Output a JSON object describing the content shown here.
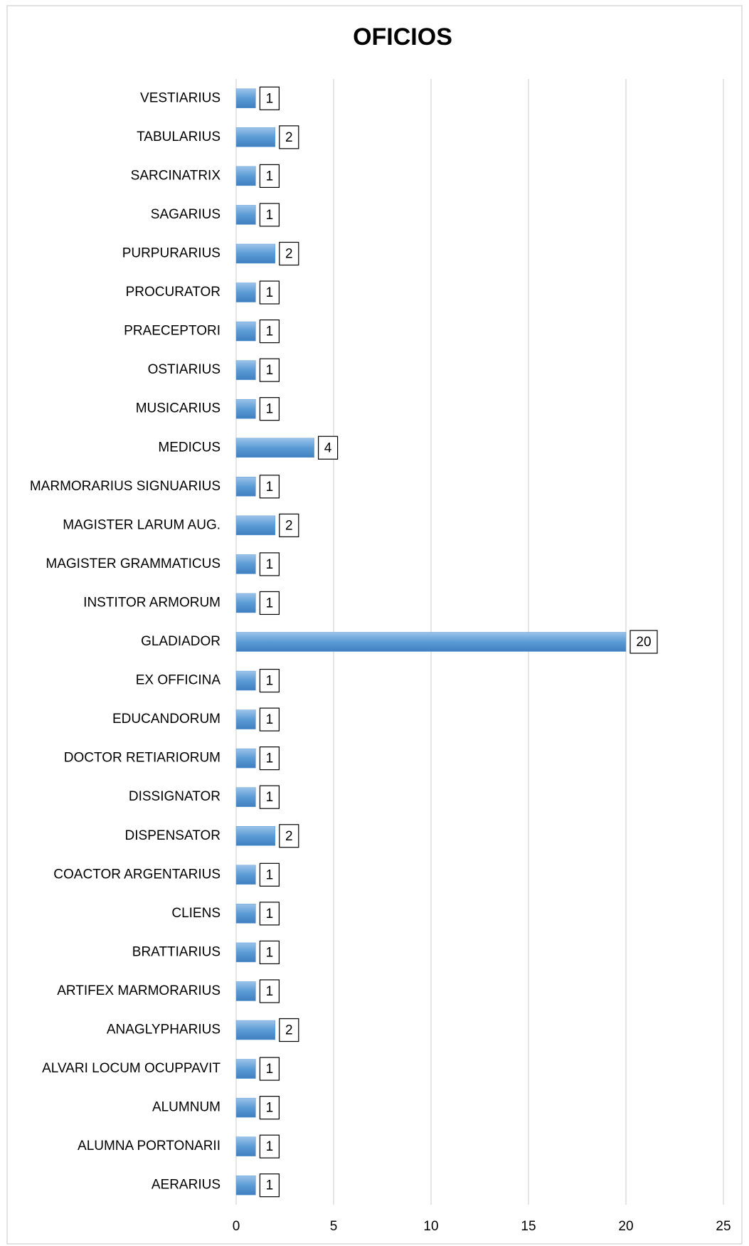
{
  "chart_data": {
    "type": "barh",
    "title": "OFICIOS",
    "categories": [
      "AERARIUS",
      "ALUMNA PORTONARII",
      "ALUMNUM",
      "ALVARI LOCUM OCUPPAVIT",
      "ANAGLYPHARIUS",
      "ARTIFEX MARMORARIUS",
      "BRATTIARIUS",
      "CLIENS",
      "COACTOR ARGENTARIUS",
      "DISPENSATOR",
      "DISSIGNATOR",
      "DOCTOR RETIARIORUM",
      "EDUCANDORUM",
      "EX OFFICINA",
      "GLADIADOR",
      "INSTITOR ARMORUM",
      "MAGISTER GRAMMATICUS",
      "MAGISTER LARUM AUG.",
      "MARMORARIUS SIGNUARIUS",
      "MEDICUS",
      "MUSICARIUS",
      "OSTIARIUS",
      "PRAECEPTORI",
      "PROCURATOR",
      "PURPURARIUS",
      "SAGARIUS",
      "SARCINATRIX",
      "TABULARIUS",
      "VESTIARIUS"
    ],
    "values": [
      1,
      1,
      1,
      1,
      2,
      1,
      1,
      1,
      1,
      2,
      1,
      1,
      1,
      1,
      20,
      1,
      1,
      2,
      1,
      4,
      1,
      1,
      1,
      1,
      2,
      1,
      1,
      2,
      1
    ],
    "color": "#5b9bd5",
    "xlim": [
      0,
      25
    ],
    "xticks": [
      0,
      5,
      10,
      15,
      20,
      25
    ],
    "grid": true
  }
}
